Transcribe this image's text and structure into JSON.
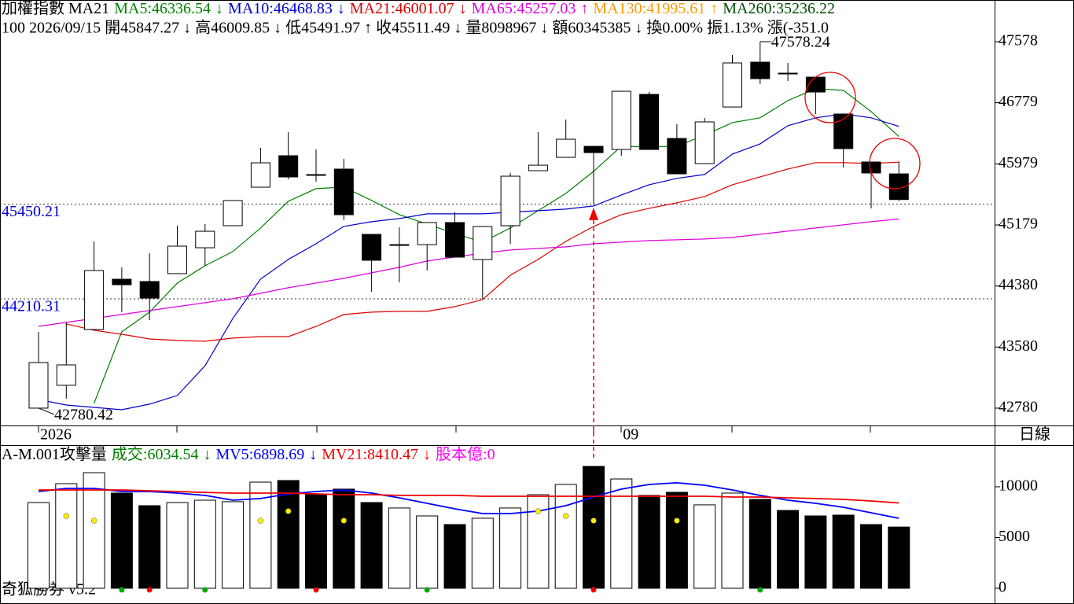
{
  "chart_data": [
    {
      "type": "candlestick",
      "title": "加權指數 MA21",
      "info": "100 2026/09/15 開45847.27 ↓ 高46009.85 ↓ 低45491.97 ↑ 收45511.49 ↓ 量8098967 ↓ 額60345385 ↓ 換0.00% 振1.13% 漲(-351.0",
      "categories": [
        "2026",
        null,
        null,
        null,
        null,
        null,
        null,
        null,
        null,
        null,
        null,
        null,
        null,
        null,
        null,
        null,
        null,
        null,
        null,
        null,
        null,
        "09",
        null,
        null,
        null,
        null,
        null,
        null,
        null,
        null,
        null,
        null
      ],
      "open": [
        42780,
        43079,
        43810,
        44468,
        44438,
        44541,
        44880,
        45169,
        45673,
        46085,
        45838,
        45910,
        45055,
        44911,
        44921,
        45210,
        44726,
        45169,
        45889,
        46064,
        46208,
        46167,
        46888,
        46311,
        45982,
        46723,
        47310,
        47166,
        47114,
        46631,
        46003,
        45847.27
      ],
      "high": [
        43779,
        43902,
        44963,
        44623,
        44808,
        45169,
        45189,
        45498,
        46188,
        46394,
        46168,
        46044,
        45055,
        45148,
        45210,
        45344,
        45158,
        45859,
        46394,
        46559,
        46208,
        46929,
        46919,
        46497,
        46579,
        47403,
        47578.24,
        47300,
        47114,
        46631,
        46003,
        46009.85
      ],
      "low": [
        42780.42,
        42904,
        43810,
        44036,
        43933,
        44541,
        44644,
        45169,
        45673,
        45776,
        45745,
        45241,
        44304,
        44427,
        44582,
        44757,
        44210.31,
        44932,
        45889,
        46064,
        45450.21,
        46085,
        46167,
        45848,
        45982,
        46723,
        47022,
        47063,
        46631,
        45930,
        45395,
        45491.97
      ],
      "close": [
        43377,
        43346,
        44582,
        44396,
        44221,
        44901,
        45096,
        45498,
        45992,
        45807,
        45828,
        45313,
        44716,
        44921,
        45210,
        44757,
        45158,
        45817,
        45961,
        46301,
        46126,
        46929,
        46167,
        45848,
        46528,
        47300,
        47094,
        47156,
        46919,
        46178,
        45859,
        45511.49
      ],
      "series": [
        {
          "name": "MA5:46336.54",
          "trend": "↓",
          "color": "#008000",
          "values": [
            null,
            null,
            42842,
            43779,
            44037,
            44418,
            44644,
            44830,
            45139,
            45489,
            45654,
            45674,
            45499,
            45314,
            45190,
            45067,
            44953,
            45139,
            45365,
            45592,
            45880,
            46210,
            46200,
            46210,
            46354,
            46519,
            46581,
            46807,
            46962,
            46941,
            46663,
            46336.54
          ]
        },
        {
          "name": "MA10:46468.83",
          "trend": "↓",
          "color": "#0000cc",
          "values": [
            42893,
            42821,
            42790,
            42759,
            42832,
            42945,
            43336,
            43954,
            44469,
            44727,
            44933,
            45159,
            45221,
            45262,
            45324,
            45324,
            45324,
            45345,
            45365,
            45386,
            45427,
            45571,
            45705,
            45788,
            45839,
            46107,
            46241,
            46478,
            46581,
            46632,
            46581,
            46468.83
          ]
        },
        {
          "name": "MA21:46001.07",
          "trend": "↓",
          "color": "#dd0000",
          "values": [
            null,
            43882,
            43800,
            43748,
            43686,
            43666,
            43656,
            43697,
            43717,
            43717,
            43851,
            44006,
            44037,
            44047,
            44047,
            44109,
            44201,
            44521,
            44727,
            44964,
            45159,
            45314,
            45396,
            45468,
            45551,
            45705,
            45808,
            45911,
            45994,
            45994,
            45983,
            46001.07
          ]
        },
        {
          "name": "MA65:45257.03",
          "trend": "↑",
          "color": "#dd00dd",
          "values": [
            43851,
            43903,
            43954,
            44006,
            44057,
            44109,
            44160,
            44212,
            44284,
            44356,
            44418,
            44480,
            44552,
            44624,
            44706,
            44758,
            44809,
            44850,
            44871,
            44892,
            44933,
            44953,
            44974,
            44984,
            44995,
            45015,
            45056,
            45098,
            45139,
            45180,
            45221,
            45257.03
          ]
        }
      ],
      "legend_extra": [
        {
          "name": "MA130:41995.61",
          "trend": "↑",
          "color": "#ff9900"
        },
        {
          "name": "MA260:35236.22",
          "color": "#004d00"
        }
      ],
      "hlines": [
        {
          "value": 45450.21,
          "label": "45450.21"
        },
        {
          "value": 44210.31,
          "label": "44210.31"
        }
      ],
      "low_label": "42780.42",
      "high_label": "47578.24",
      "ylim": [
        42553,
        48124
      ],
      "yticks": [
        47578,
        46779,
        45979,
        45179,
        44380,
        43580,
        42780
      ]
    },
    {
      "type": "bar",
      "title": "A-M.001攻擊量",
      "legend_extra": [
        {
          "name": "成交:6034.54",
          "trend": "↓",
          "color": "#008000"
        }
      ],
      "values": [
        8450,
        10310,
        11390,
        9380,
        8140,
        8450,
        8680,
        8530,
        10460,
        10620,
        9300,
        9770,
        8450,
        7910,
        7130,
        6280,
        6900,
        7910,
        9220,
        10230,
        12010,
        10770,
        9150,
        9460,
        8220,
        9380,
        8760,
        7670,
        7130,
        7210,
        6280,
        6034.54
      ],
      "series": [
        {
          "name": "MV5:6898.69",
          "trend": "↓",
          "color": "#0000ff",
          "values": [
            9530,
            9840,
            9840,
            9530,
            9530,
            9380,
            9150,
            8680,
            8840,
            9300,
            9530,
            9690,
            9380,
            8910,
            8370,
            7830,
            7360,
            7360,
            7600,
            8140,
            8990,
            9770,
            10230,
            10390,
            10150,
            9690,
            9150,
            8680,
            8370,
            7980,
            7440,
            6898.69
          ]
        },
        {
          "name": "MV21:8410.47",
          "trend": "↓",
          "color": "#ee0000",
          "values": [
            9690,
            9690,
            9690,
            9690,
            9610,
            9530,
            9450,
            9380,
            9380,
            9380,
            9300,
            9220,
            9220,
            9150,
            9150,
            9150,
            9070,
            9070,
            9070,
            9070,
            9070,
            9070,
            9070,
            9070,
            9070,
            8990,
            8990,
            8910,
            8840,
            8760,
            8600,
            8410.47
          ]
        }
      ],
      "legend_extra2": [
        {
          "name": "股本億:0",
          "color": "#ff00ff"
        }
      ],
      "ylim": [
        -1550,
        14105
      ],
      "yticks": [
        10000,
        5000,
        0
      ]
    }
  ],
  "period": "日線",
  "footer": "奇狐勝券 v5.2"
}
